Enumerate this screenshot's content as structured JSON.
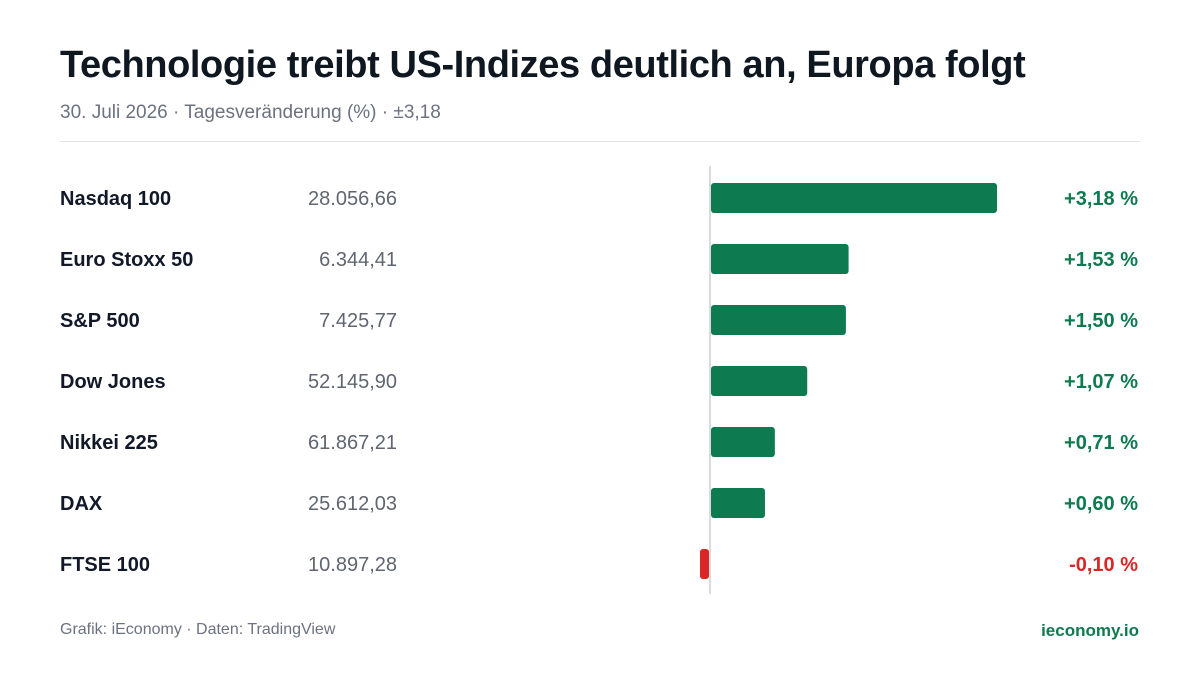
{
  "header": {
    "title": "Technologie treibt US-Indizes deutlich an, Europa folgt",
    "subtitle": "30. Juli 2026 · Tagesveränderung (%) · ±3,18"
  },
  "footer": {
    "source": "Grafik: iEconomy · Daten: TradingView",
    "brand": "ieconomy.io"
  },
  "colors": {
    "positive": "#0e7a4f",
    "negative": "#dc2626",
    "brand": "#0e7a4f",
    "axis": "#d9dcdf"
  },
  "chart_data": {
    "type": "bar",
    "orientation": "horizontal",
    "categories": [
      "Nasdaq 100",
      "Euro Stoxx 50",
      "S&P 500",
      "Dow Jones",
      "Nikkei 225",
      "DAX",
      "FTSE 100"
    ],
    "levels": [
      "28.056,66",
      "6.344,41",
      "7.425,77",
      "52.145,90",
      "61.867,21",
      "25.612,03",
      "10.897,28"
    ],
    "values": [
      3.18,
      1.53,
      1.5,
      1.07,
      0.71,
      0.6,
      -0.1
    ],
    "value_labels": [
      "+3,18 %",
      "+1,53 %",
      "+1,50 %",
      "+1,07 %",
      "+0,71 %",
      "+0,60 %",
      "-0,10 %"
    ],
    "xlim": [
      -0.1,
      3.18
    ],
    "grid": false,
    "legend": "none"
  }
}
